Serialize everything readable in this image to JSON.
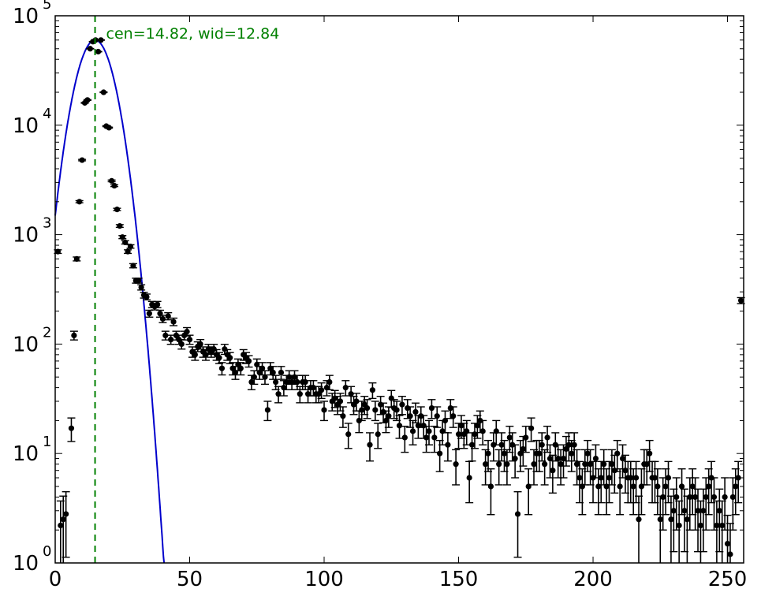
{
  "chart_data": {
    "type": "scatter",
    "title": "",
    "xlabel": "",
    "ylabel": "",
    "xlim": [
      0,
      256
    ],
    "ylim": [
      1,
      100000
    ],
    "yscale": "log",
    "grid": false,
    "x_ticks": [
      0,
      50,
      100,
      150,
      200,
      250
    ],
    "y_ticks": [
      {
        "value": 1,
        "base": "10",
        "exp": "0"
      },
      {
        "value": 10,
        "base": "10",
        "exp": "1"
      },
      {
        "value": 100,
        "base": "10",
        "exp": "2"
      },
      {
        "value": 1000,
        "base": "10",
        "exp": "3"
      },
      {
        "value": 10000,
        "base": "10",
        "exp": "4"
      },
      {
        "value": 100000,
        "base": "10",
        "exp": "5"
      }
    ],
    "annotation": {
      "text": "cen=14.82, wid=12.84",
      "color": "#008000"
    },
    "vline": {
      "x": 14.82,
      "color": "#008000",
      "style": "dashed"
    },
    "fit": {
      "type": "gaussian",
      "center": 14.82,
      "width": 12.84,
      "peak": 60000,
      "color": "#0000cc"
    },
    "marker_color": "#000000",
    "points": [
      [
        1,
        700
      ],
      [
        2,
        2.2
      ],
      [
        3,
        2.5
      ],
      [
        4,
        2.8
      ],
      [
        6,
        17
      ],
      [
        7,
        120
      ],
      [
        8,
        600
      ],
      [
        9,
        2000
      ],
      [
        10,
        4800
      ],
      [
        11,
        16000
      ],
      [
        12,
        17000
      ],
      [
        13,
        50000
      ],
      [
        14,
        58000
      ],
      [
        15,
        60000
      ],
      [
        16,
        47000
      ],
      [
        17,
        60000
      ],
      [
        18,
        20000
      ],
      [
        19,
        9800
      ],
      [
        20,
        9500
      ],
      [
        21,
        3100
      ],
      [
        22,
        2800
      ],
      [
        23,
        1700
      ],
      [
        24,
        1200
      ],
      [
        25,
        950
      ],
      [
        26,
        850
      ],
      [
        27,
        700
      ],
      [
        28,
        780
      ],
      [
        29,
        520
      ],
      [
        30,
        380
      ],
      [
        31,
        380
      ],
      [
        32,
        330
      ],
      [
        33,
        280
      ],
      [
        34,
        270
      ],
      [
        35,
        190
      ],
      [
        36,
        230
      ],
      [
        37,
        220
      ],
      [
        38,
        230
      ],
      [
        39,
        190
      ],
      [
        40,
        170
      ],
      [
        41,
        120
      ],
      [
        42,
        180
      ],
      [
        43,
        110
      ],
      [
        44,
        160
      ],
      [
        45,
        120
      ],
      [
        46,
        110
      ],
      [
        47,
        100
      ],
      [
        48,
        120
      ],
      [
        49,
        130
      ],
      [
        50,
        110
      ],
      [
        51,
        85
      ],
      [
        52,
        80
      ],
      [
        53,
        95
      ],
      [
        54,
        100
      ],
      [
        55,
        85
      ],
      [
        56,
        80
      ],
      [
        57,
        90
      ],
      [
        58,
        85
      ],
      [
        59,
        90
      ],
      [
        60,
        80
      ],
      [
        61,
        75
      ],
      [
        62,
        60
      ],
      [
        63,
        90
      ],
      [
        64,
        80
      ],
      [
        65,
        75
      ],
      [
        66,
        60
      ],
      [
        67,
        55
      ],
      [
        68,
        65
      ],
      [
        69,
        60
      ],
      [
        70,
        80
      ],
      [
        71,
        75
      ],
      [
        72,
        70
      ],
      [
        73,
        45
      ],
      [
        74,
        50
      ],
      [
        75,
        65
      ],
      [
        76,
        55
      ],
      [
        77,
        60
      ],
      [
        78,
        50
      ],
      [
        79,
        25
      ],
      [
        80,
        60
      ],
      [
        81,
        55
      ],
      [
        82,
        45
      ],
      [
        83,
        35
      ],
      [
        84,
        55
      ],
      [
        85,
        40
      ],
      [
        86,
        45
      ],
      [
        87,
        50
      ],
      [
        88,
        45
      ],
      [
        89,
        50
      ],
      [
        90,
        45
      ],
      [
        91,
        35
      ],
      [
        92,
        45
      ],
      [
        93,
        45
      ],
      [
        94,
        35
      ],
      [
        95,
        40
      ],
      [
        96,
        40
      ],
      [
        97,
        35
      ],
      [
        98,
        35
      ],
      [
        99,
        38
      ],
      [
        100,
        25
      ],
      [
        101,
        40
      ],
      [
        102,
        45
      ],
      [
        103,
        30
      ],
      [
        104,
        32
      ],
      [
        105,
        28
      ],
      [
        106,
        30
      ],
      [
        107,
        22
      ],
      [
        108,
        40
      ],
      [
        109,
        15
      ],
      [
        110,
        35
      ],
      [
        111,
        28
      ],
      [
        112,
        30
      ],
      [
        113,
        20
      ],
      [
        114,
        25
      ],
      [
        115,
        28
      ],
      [
        116,
        26
      ],
      [
        117,
        12
      ],
      [
        118,
        38
      ],
      [
        119,
        25
      ],
      [
        120,
        15
      ],
      [
        121,
        28
      ],
      [
        122,
        24
      ],
      [
        123,
        20
      ],
      [
        124,
        22
      ],
      [
        125,
        32
      ],
      [
        126,
        26
      ],
      [
        127,
        25
      ],
      [
        128,
        18
      ],
      [
        129,
        28
      ],
      [
        130,
        14
      ],
      [
        131,
        26
      ],
      [
        132,
        22
      ],
      [
        133,
        16
      ],
      [
        134,
        24
      ],
      [
        135,
        18
      ],
      [
        136,
        22
      ],
      [
        137,
        18
      ],
      [
        138,
        14
      ],
      [
        139,
        16
      ],
      [
        140,
        26
      ],
      [
        141,
        14
      ],
      [
        142,
        22
      ],
      [
        143,
        10
      ],
      [
        144,
        16
      ],
      [
        145,
        20
      ],
      [
        146,
        12
      ],
      [
        147,
        26
      ],
      [
        148,
        22
      ],
      [
        149,
        8
      ],
      [
        150,
        15
      ],
      [
        151,
        18
      ],
      [
        152,
        15
      ],
      [
        153,
        16
      ],
      [
        154,
        6
      ],
      [
        155,
        12
      ],
      [
        156,
        15
      ],
      [
        157,
        18
      ],
      [
        158,
        20
      ],
      [
        159,
        16
      ],
      [
        160,
        8
      ],
      [
        161,
        10
      ],
      [
        162,
        5
      ],
      [
        163,
        12
      ],
      [
        164,
        16
      ],
      [
        165,
        8
      ],
      [
        166,
        12
      ],
      [
        167,
        10
      ],
      [
        168,
        8
      ],
      [
        169,
        14
      ],
      [
        170,
        12
      ],
      [
        171,
        9
      ],
      [
        172,
        2.8
      ],
      [
        173,
        10
      ],
      [
        174,
        11
      ],
      [
        175,
        14
      ],
      [
        176,
        5
      ],
      [
        177,
        17
      ],
      [
        178,
        8
      ],
      [
        179,
        10
      ],
      [
        180,
        10
      ],
      [
        181,
        12
      ],
      [
        182,
        8
      ],
      [
        183,
        14
      ],
      [
        184,
        9
      ],
      [
        185,
        7
      ],
      [
        186,
        12
      ],
      [
        187,
        9
      ],
      [
        188,
        8
      ],
      [
        189,
        9
      ],
      [
        190,
        11
      ],
      [
        191,
        12
      ],
      [
        192,
        10
      ],
      [
        193,
        12
      ],
      [
        194,
        8
      ],
      [
        195,
        6
      ],
      [
        196,
        5
      ],
      [
        197,
        8
      ],
      [
        198,
        10
      ],
      [
        199,
        8
      ],
      [
        200,
        6
      ],
      [
        201,
        9
      ],
      [
        202,
        5
      ],
      [
        203,
        6
      ],
      [
        204,
        8
      ],
      [
        205,
        5
      ],
      [
        206,
        6
      ],
      [
        207,
        8
      ],
      [
        208,
        7
      ],
      [
        209,
        10
      ],
      [
        210,
        5
      ],
      [
        211,
        9
      ],
      [
        212,
        7
      ],
      [
        213,
        6
      ],
      [
        214,
        6
      ],
      [
        215,
        5
      ],
      [
        216,
        6
      ],
      [
        217,
        2.5
      ],
      [
        218,
        5
      ],
      [
        219,
        8
      ],
      [
        220,
        8
      ],
      [
        221,
        10
      ],
      [
        222,
        6
      ],
      [
        223,
        6
      ],
      [
        224,
        5
      ],
      [
        225,
        2.5
      ],
      [
        226,
        4
      ],
      [
        227,
        5
      ],
      [
        228,
        6
      ],
      [
        229,
        2.5
      ],
      [
        230,
        3
      ],
      [
        231,
        4
      ],
      [
        232,
        2.2
      ],
      [
        233,
        5
      ],
      [
        234,
        3
      ],
      [
        235,
        2.5
      ],
      [
        236,
        4
      ],
      [
        237,
        5
      ],
      [
        238,
        4
      ],
      [
        239,
        3
      ],
      [
        240,
        2.2
      ],
      [
        241,
        3
      ],
      [
        242,
        4
      ],
      [
        243,
        5
      ],
      [
        244,
        6
      ],
      [
        245,
        4
      ],
      [
        246,
        2.2
      ],
      [
        247,
        3
      ],
      [
        248,
        2.2
      ],
      [
        249,
        4
      ],
      [
        250,
        1.5
      ],
      [
        251,
        1.2
      ],
      [
        252,
        4
      ],
      [
        253,
        5
      ],
      [
        254,
        6
      ],
      [
        255,
        250
      ]
    ]
  }
}
